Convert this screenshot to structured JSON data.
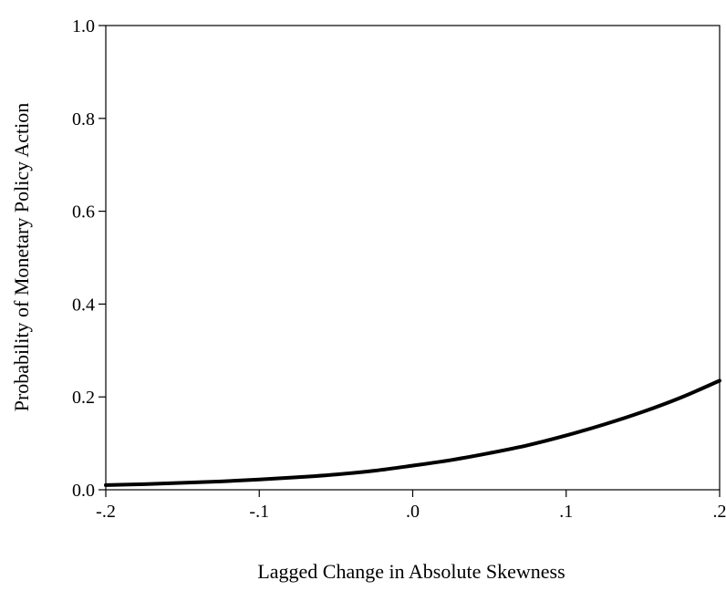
{
  "chart_data": {
    "type": "line",
    "title": "",
    "xlabel": "Lagged Change in Absolute Skewness",
    "ylabel": "Probability of Monetary Policy Action",
    "xlim": [
      -0.2,
      0.2
    ],
    "ylim": [
      0.0,
      1.0
    ],
    "x_ticks": [
      -0.2,
      -0.1,
      0.0,
      0.1,
      0.2
    ],
    "x_tick_labels": [
      "-.2",
      "-.1",
      ".0",
      ".1",
      ".2"
    ],
    "y_ticks": [
      0.0,
      0.2,
      0.4,
      0.6,
      0.8,
      1.0
    ],
    "y_tick_labels": [
      "0.0",
      "0.2",
      "0.4",
      "0.6",
      "0.8",
      "1.0"
    ],
    "grid": false,
    "legend": "none",
    "series": [
      {
        "color": "#000000",
        "x": [
          -0.2,
          -0.175,
          -0.15,
          -0.125,
          -0.1,
          -0.075,
          -0.05,
          -0.025,
          0.0,
          0.025,
          0.05,
          0.075,
          0.1,
          0.125,
          0.15,
          0.175,
          0.2
        ],
        "y": [
          0.01,
          0.012,
          0.015,
          0.018,
          0.022,
          0.027,
          0.033,
          0.041,
          0.052,
          0.064,
          0.079,
          0.096,
          0.117,
          0.141,
          0.168,
          0.199,
          0.235
        ]
      }
    ]
  }
}
